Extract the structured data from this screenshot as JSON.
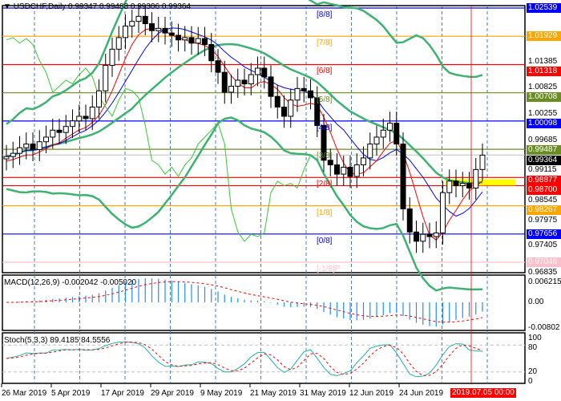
{
  "header": {
    "symbol": "USDCHF,Daily",
    "open": "0.99347",
    "high": "0.99488",
    "low": "0.99306",
    "close": "0.99364"
  },
  "macd": {
    "label": "MACD(12,26,9) -0.002042 -0.005020",
    "ticks": [
      "0.006215",
      "0.00",
      "-0.00802"
    ]
  },
  "stoch": {
    "label": "Stoch(5,3,3) 89.4185 84.5556",
    "ticks": [
      "100",
      "80",
      "20",
      "0"
    ]
  },
  "price_labels": [
    {
      "text": "1.02539",
      "price": 1.02539,
      "color": "#0000ff",
      "murrey": "[8/8]"
    },
    {
      "text": "1.01929",
      "price": 1.01929,
      "color": "#ffa500",
      "murrey": "[7/8]"
    },
    {
      "text": "1.01318",
      "price": 1.01318,
      "color": "#ff0000",
      "murrey": "[6/8]"
    },
    {
      "text": "1.00708",
      "price": 1.00708,
      "color": "#6b8e23",
      "murrey": "[5/8]"
    },
    {
      "text": "1.00098",
      "price": 1.00098,
      "color": "#0000ff",
      "murrey": "[4/8]"
    },
    {
      "text": "0.99487",
      "price": 0.99487,
      "color": "#6b8e23",
      "murrey": "[3/8]"
    },
    {
      "text": "0.98877",
      "price": 0.98877,
      "color": "#ff0000",
      "murrey": "[2/8]"
    },
    {
      "text": "0.98700",
      "price": 0.987,
      "color": "#ff0000",
      "murrey": ""
    },
    {
      "text": "0.98267",
      "price": 0.98267,
      "color": "#ffa500",
      "murrey": "[1/8]"
    },
    {
      "text": "0.97656",
      "price": 0.97656,
      "color": "#0000ff",
      "murrey": "[0/8]"
    },
    {
      "text": "0.97046",
      "price": 0.97046,
      "color": "#ffc0cb",
      "murrey": "[-1/8]P"
    }
  ],
  "current_price": {
    "text": "0.99364",
    "price": 0.99364
  },
  "axis_ticks": [
    "1.01385",
    "1.00825",
    "1.00255",
    "0.99685",
    "0.99115",
    "0.98545",
    "0.97975",
    "0.97405",
    "0.96835"
  ],
  "dates": [
    "26 Mar 2019",
    "5 Apr 2019",
    "17 Apr 2019",
    "29 Apr 2019",
    "9 May 2019",
    "21 May 2019",
    "31 May 2019",
    "12 Jun 2019",
    "24 Jun 2019"
  ],
  "crosshair_time": "2019.07.05 00:00",
  "chart_data": {
    "type": "candlestick",
    "symbol": "USDCHF",
    "timeframe": "Daily",
    "ylim": [
      0.9668,
      1.026
    ],
    "closes": [
      0.9933,
      0.994,
      0.9952,
      0.996,
      0.9948,
      0.9965,
      0.9975,
      0.999,
      0.9985,
      0.9998,
      1.001,
      1.002,
      1.0015,
      1.004,
      1.0075,
      1.013,
      1.0165,
      1.019,
      1.0215,
      1.0225,
      1.0236,
      1.022,
      1.0205,
      1.021,
      1.02,
      1.0195,
      1.0185,
      1.019,
      1.0178,
      1.0188,
      1.0175,
      1.014,
      1.0115,
      1.0072,
      1.0085,
      1.0098,
      1.009,
      1.011,
      1.0124,
      1.0105,
      1.0063,
      1.004,
      1.002,
      1.0055,
      1.008,
      1.0075,
      1.006,
      1.0,
      0.9925,
      0.9915,
      0.9895,
      0.991,
      0.989,
      0.9915,
      0.993,
      0.996,
      0.9975,
      0.999,
      1.0005,
      0.996,
      0.982,
      0.977,
      0.975,
      0.9765,
      0.976,
      0.9768,
      0.9855,
      0.988,
      0.987,
      0.9875,
      0.9865,
      0.9905,
      0.9936
    ]
  }
}
